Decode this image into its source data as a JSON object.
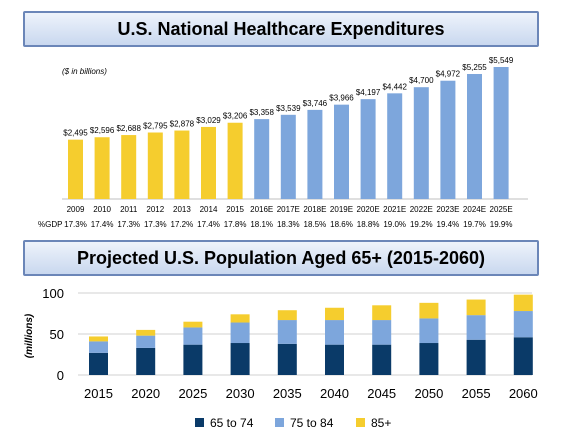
{
  "chart_data": [
    {
      "type": "bar",
      "title": "U.S. National Healthcare Expenditures",
      "subtitle": "($ in billions)",
      "categories": [
        "2009",
        "2010",
        "2011",
        "2012",
        "2013",
        "2014",
        "2015",
        "2016E",
        "2017E",
        "2018E",
        "2019E",
        "2020E",
        "2021E",
        "2022E",
        "2023E",
        "2024E",
        "2025E"
      ],
      "values": [
        2495,
        2596,
        2688,
        2795,
        2878,
        3029,
        3206,
        3358,
        3539,
        3746,
        3966,
        4197,
        4442,
        4700,
        4972,
        5255,
        5549
      ],
      "value_labels": [
        "$2,495",
        "$2,596",
        "$2,688",
        "$2,795",
        "$2,878",
        "$3,029",
        "$3,206",
        "$3,358",
        "$3,539",
        "$3,746",
        "$3,966",
        "$4,197",
        "$4,442",
        "$4,700",
        "$4,972",
        "$5,255",
        "$5,549"
      ],
      "row_label": "%GDP",
      "row_values": [
        "17.3%",
        "17.4%",
        "17.3%",
        "17.3%",
        "17.2%",
        "17.4%",
        "17.8%",
        "18.1%",
        "18.3%",
        "18.5%",
        "18.6%",
        "18.8%",
        "19.0%",
        "19.2%",
        "19.4%",
        "19.7%",
        "19.9%"
      ],
      "colors": {
        "actual": "#f5cd2e",
        "estimate": "#7da6dc"
      },
      "ylim": [
        0,
        5800
      ]
    },
    {
      "type": "bar",
      "stacked": true,
      "title": "Projected U.S. Population Aged 65+ (2015-2060)",
      "ylabel": "(millions)",
      "categories": [
        "2015",
        "2020",
        "2025",
        "2030",
        "2035",
        "2040",
        "2045",
        "2050",
        "2055",
        "2060"
      ],
      "series": [
        {
          "name": "65 to 74",
          "color": "#0a3a68",
          "values": [
            27,
            33,
            37,
            39,
            38,
            37,
            37,
            39,
            43,
            46
          ]
        },
        {
          "name": "75 to 84",
          "color": "#7da6dc",
          "values": [
            14,
            15,
            21,
            25,
            29,
            30,
            30,
            30,
            30,
            32
          ]
        },
        {
          "name": "85+",
          "color": "#f5cd2e",
          "values": [
            6,
            7,
            7,
            10,
            12,
            15,
            18,
            19,
            19,
            20
          ]
        }
      ],
      "ylim": [
        0,
        100
      ],
      "yticks": [
        0,
        50,
        100
      ],
      "grid": true,
      "legend": "bottom"
    }
  ]
}
